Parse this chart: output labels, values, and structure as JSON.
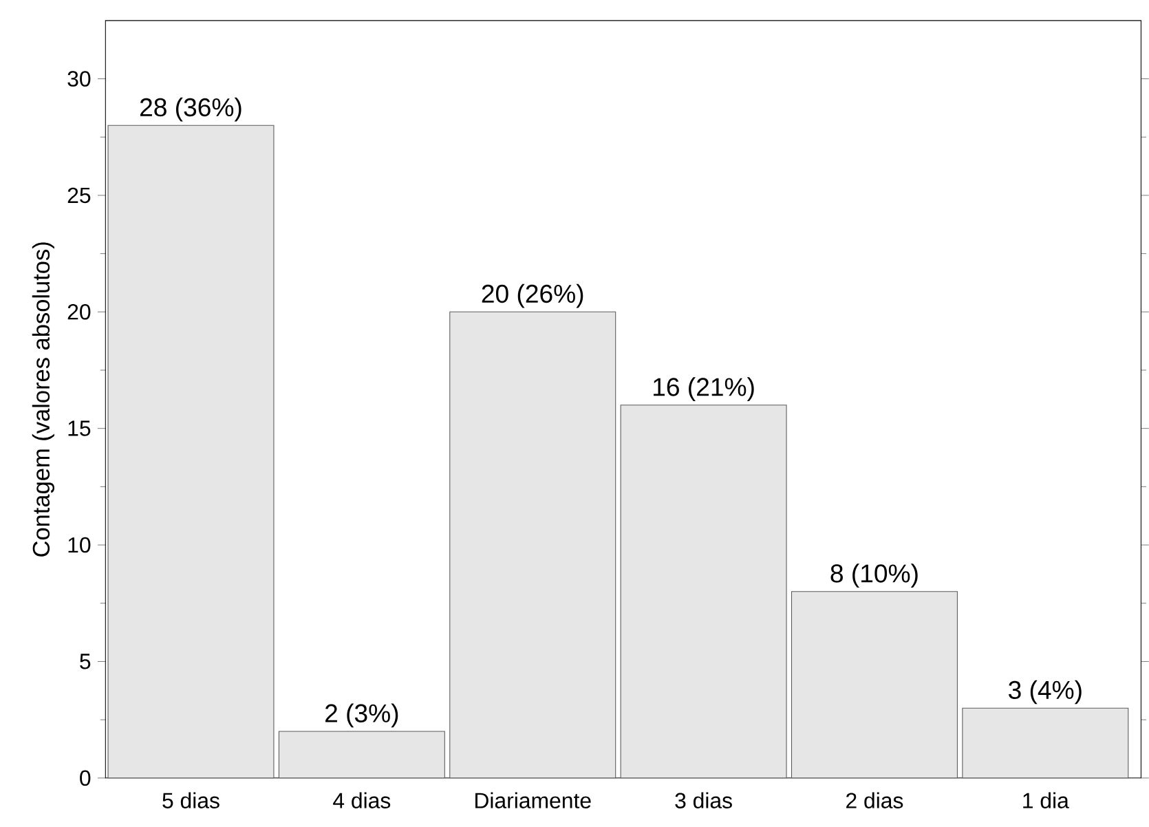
{
  "chart_data": {
    "type": "bar",
    "ylabel": "Contagem (valores absolutos)",
    "categories": [
      "5 dias",
      "4 dias",
      "Diariamente",
      "3 dias",
      "2 dias",
      "1 dia"
    ],
    "values": [
      28,
      2,
      20,
      16,
      8,
      3
    ],
    "value_labels": [
      "28 (36%)",
      "2 (3%)",
      "20 (26%)",
      "16 (21%)",
      "8 (10%)",
      "3 (4%)"
    ],
    "color": "#e6e6e6",
    "ylim": [
      0,
      32.5
    ],
    "yticks": [
      0,
      5,
      10,
      15,
      20,
      25,
      30
    ]
  }
}
